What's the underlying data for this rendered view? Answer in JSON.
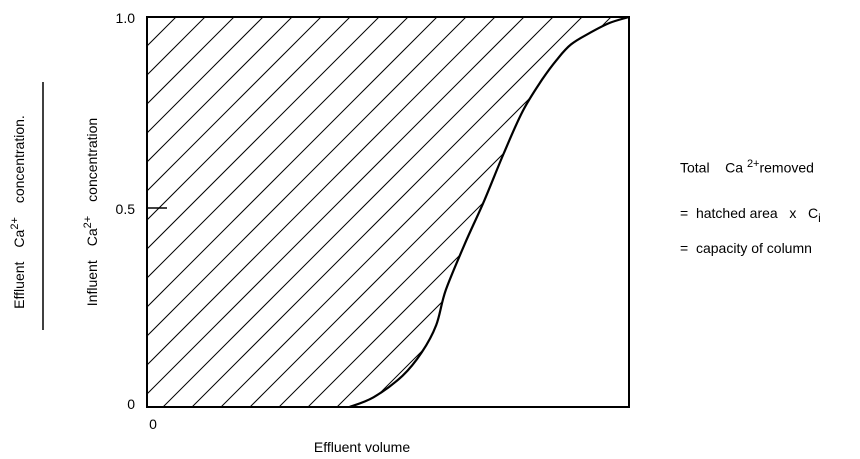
{
  "chart_data": {
    "type": "area",
    "title": "",
    "xlabel": "Effluent volume",
    "ylabel": {
      "numerator_label": "Effluent",
      "numerator_ion": "Ca",
      "numerator_charge": "2+",
      "numerator_unit": "concentration.",
      "denominator_label": "Influent",
      "denominator_ion": "Ca",
      "denominator_charge": "2+",
      "denominator_unit": "concentration"
    },
    "xlim": [
      0,
      1
    ],
    "ylim": [
      0,
      1
    ],
    "x_ticks": [
      {
        "value": 0,
        "label": "0"
      }
    ],
    "y_ticks": [
      {
        "value": 0,
        "label": "0"
      },
      {
        "value": 0.5,
        "label": "0.5"
      },
      {
        "value": 1,
        "label": "1.0"
      }
    ],
    "grid": false,
    "series": [
      {
        "x": [
          0.42,
          0.47,
          0.53,
          0.57,
          0.6,
          0.62,
          0.66,
          0.7,
          0.74,
          0.78,
          0.82,
          0.85,
          0.88,
          0.92,
          0.96,
          1.0
        ],
        "y": [
          0,
          0.025,
          0.08,
          0.14,
          0.21,
          0.3,
          0.42,
          0.53,
          0.65,
          0.76,
          0.84,
          0.89,
          0.93,
          0.96,
          0.985,
          1.0
        ]
      }
    ],
    "annotation": {
      "line1_label": "Total",
      "line1_ion": "Ca",
      "line1_charge": "2+",
      "line1_rest": "removed",
      "line2_eq": "=",
      "line2_text": "hatched area",
      "line2_times": "x",
      "line2_c": "C",
      "line2_sub": "i",
      "line3_eq": "=",
      "line3_text": "capacity of column"
    }
  }
}
